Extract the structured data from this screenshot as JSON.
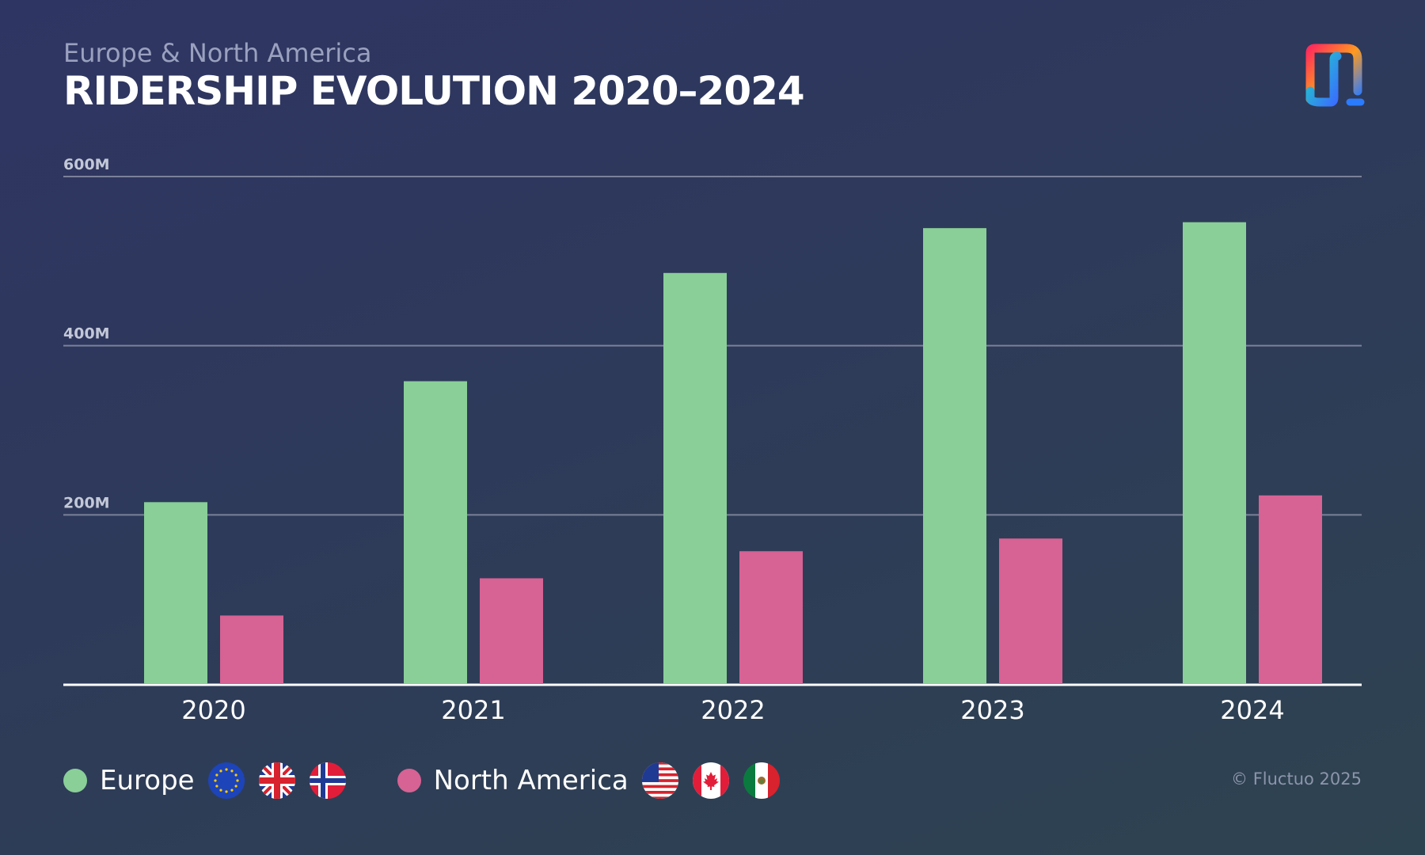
{
  "header": {
    "subtitle": "Europe & North America",
    "title": "RIDERSHIP EVOLUTION 2020–2024"
  },
  "chart_data": {
    "type": "bar",
    "title": "RIDERSHIP EVOLUTION 2020–2024",
    "subtitle": "Europe & North America",
    "xlabel": "",
    "ylabel": "",
    "categories": [
      "2020",
      "2021",
      "2022",
      "2023",
      "2024"
    ],
    "series": [
      {
        "name": "Europe",
        "color": "#89cf97",
        "values": [
          215,
          358,
          486,
          539,
          546
        ]
      },
      {
        "name": "North America",
        "color": "#d76294",
        "values": [
          81,
          125,
          157,
          172,
          223
        ]
      }
    ],
    "ylim": [
      0,
      600
    ],
    "yticks": [
      200,
      400,
      600
    ],
    "ytick_labels": [
      "200M",
      "400M",
      "600M"
    ],
    "grid": true,
    "legend": "bottom-left"
  },
  "legend": {
    "europe": {
      "label": "Europe",
      "flags": [
        "eu-flag-icon",
        "uk-flag-icon",
        "norway-flag-icon"
      ]
    },
    "north_america": {
      "label": "North America",
      "flags": [
        "usa-flag-icon",
        "canada-flag-icon",
        "mexico-flag-icon"
      ]
    }
  },
  "footer": {
    "copyright": "© Fluctuo 2025"
  },
  "colors": {
    "europe": "#89cf97",
    "north_america": "#d76294",
    "grid": "#7b8199",
    "subtitle": "#9aa1bf"
  }
}
